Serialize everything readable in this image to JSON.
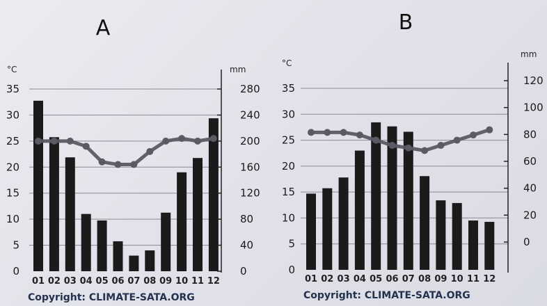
{
  "chart_data": [
    {
      "type": "bar+line",
      "title": "A",
      "left_axis_unit": "°C",
      "right_axis_unit": "mm",
      "categories": [
        "01",
        "02",
        "03",
        "04",
        "05",
        "06",
        "07",
        "08",
        "09",
        "10",
        "11",
        "12"
      ],
      "temp_ticks": [
        "0",
        "5",
        "10",
        "15",
        "20",
        "25",
        "30",
        "35"
      ],
      "precip_ticks": [
        "0",
        "40",
        "80",
        "120",
        "160",
        "200",
        "240",
        "280"
      ],
      "temp_range": [
        0,
        35
      ],
      "precip_range": [
        0,
        280
      ],
      "precip_mm": [
        262,
        206,
        175,
        88,
        78,
        46,
        24,
        32,
        90,
        152,
        174,
        235
      ],
      "temp_c": [
        25,
        25,
        25,
        24,
        21,
        20.5,
        20.5,
        23,
        25,
        25.5,
        25,
        25.5
      ],
      "copyright": "Copyright: CLIMATE-SATA.ORG",
      "grid": "horizontal",
      "colors": {
        "bars": "#1b1b1b",
        "line": "#5a5a64"
      }
    },
    {
      "type": "bar+line",
      "title": "B",
      "left_axis_unit": "°C",
      "right_axis_unit": "mm",
      "categories": [
        "01",
        "02",
        "03",
        "04",
        "05",
        "06",
        "07",
        "08",
        "09",
        "10",
        "11",
        "12"
      ],
      "temp_ticks": [
        "0",
        "5",
        "10",
        "15",
        "20",
        "25",
        "30",
        "35"
      ],
      "precip_ticks": [
        "0",
        "20",
        "40",
        "60",
        "80",
        "100",
        "120"
      ],
      "temp_range": [
        0,
        35
      ],
      "precip_range": [
        -20,
        130
      ],
      "precip_mm": [
        36,
        40,
        48,
        68,
        89,
        86,
        82,
        49,
        31,
        29,
        16,
        15
      ],
      "temp_c": [
        26.5,
        26.5,
        26.5,
        26,
        25,
        24,
        23.5,
        23,
        24,
        25,
        26,
        27
      ],
      "copyright": "Copyright: CLIMATE-SATA.ORG",
      "grid": "horizontal",
      "colors": {
        "bars": "#1b1b1b",
        "line": "#5a5a64"
      }
    }
  ]
}
